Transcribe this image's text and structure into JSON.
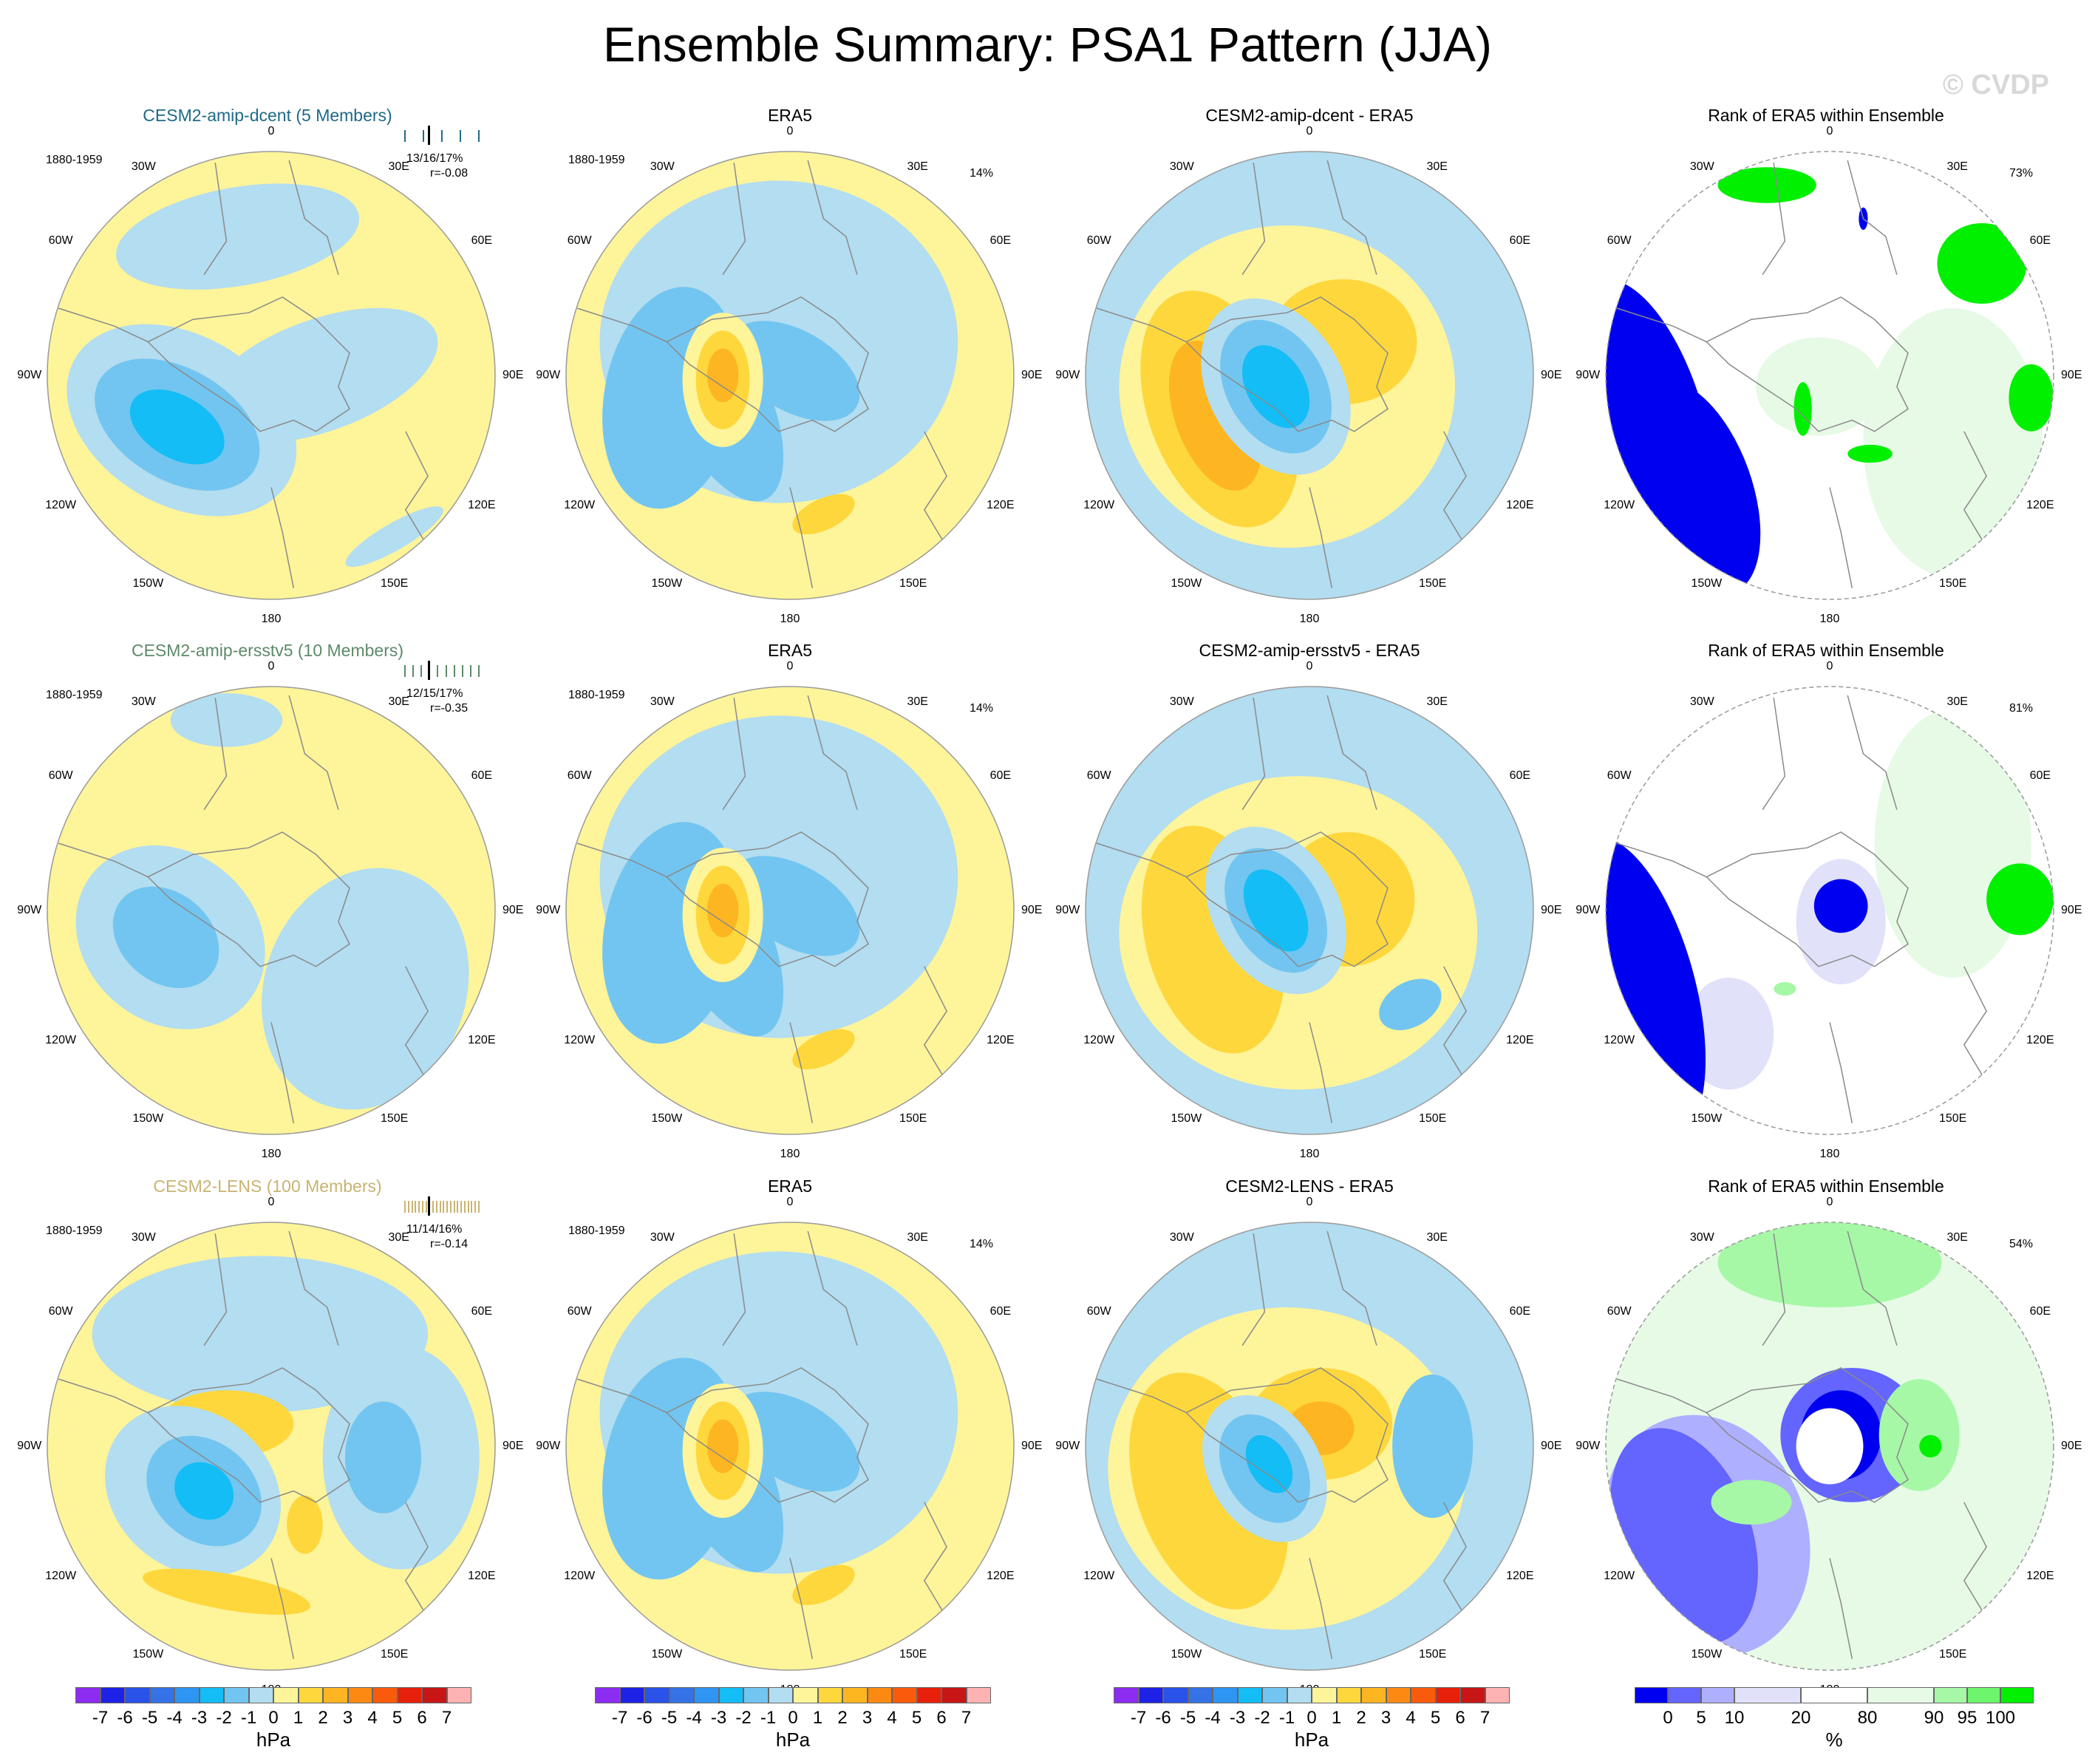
{
  "title": "Ensemble Summary: PSA1 Pattern (JJA)",
  "watermark": "© CVDP",
  "longitude_labels": [
    "0",
    "30E",
    "60E",
    "90E",
    "120E",
    "150E",
    "180",
    "150W",
    "120W",
    "90W",
    "60W",
    "30W"
  ],
  "colors": {
    "pressure_scale": [
      "#8c2cf0",
      "#1e22e6",
      "#2a52e8",
      "#3572e6",
      "#2e95f2",
      "#14bdf5",
      "#72c5f0",
      "#b3ddf0",
      "#fef49a",
      "#fed73c",
      "#fdb622",
      "#fc8a12",
      "#f95b0c",
      "#e7200c",
      "#c81515",
      "#fdb3b3"
    ],
    "rank_scale": [
      "#0000f0",
      "#6464ff",
      "#afafff",
      "#e1e1fa",
      "#ffffff",
      "#e6fae6",
      "#a6f8a6",
      "#6df56d",
      "#00f000"
    ],
    "row_title_colors": [
      "#1e6a88",
      "#5c8a68",
      "#c9b371"
    ],
    "coast": "#8a8a8a"
  },
  "rows": [
    {
      "model_title": "CESM2-amip-dcent (5 Members)",
      "period": "1880-1959",
      "stats": "13/16/17%",
      "corr": "r=-0.08",
      "obs_title": "ERA5",
      "obs_period": "1880-1959",
      "obs_pct": "14%",
      "diff_title": "CESM2-amip-dcent - ERA5",
      "rank_title": "Rank of ERA5 within Ensemble",
      "rank_pct": "73%"
    },
    {
      "model_title": "CESM2-amip-ersstv5 (10 Members)",
      "period": "1880-1959",
      "stats": "12/15/17%",
      "corr": "r=-0.35",
      "obs_title": "ERA5",
      "obs_period": "1880-1959",
      "obs_pct": "14%",
      "diff_title": "CESM2-amip-ersstv5 - ERA5",
      "rank_title": "Rank of ERA5 within Ensemble",
      "rank_pct": "81%"
    },
    {
      "model_title": "CESM2-LENS (100 Members)",
      "period": "1880-1959",
      "stats": "11/14/16%",
      "corr": "r=-0.14",
      "obs_title": "ERA5",
      "obs_period": "1880-1959",
      "obs_pct": "14%",
      "diff_title": "CESM2-LENS - ERA5",
      "rank_title": "Rank of ERA5 within Ensemble",
      "rank_pct": "54%"
    }
  ],
  "pressure_colorbar": {
    "ticks": [
      "-7",
      "-6",
      "-5",
      "-4",
      "-3",
      "-2",
      "-1",
      "0",
      "1",
      "2",
      "3",
      "4",
      "5",
      "6",
      "7"
    ],
    "unit": "hPa"
  },
  "rank_colorbar": {
    "ticks": [
      "0",
      "5",
      "10",
      "20",
      "80",
      "90",
      "95",
      "100"
    ],
    "unit": "%"
  }
}
